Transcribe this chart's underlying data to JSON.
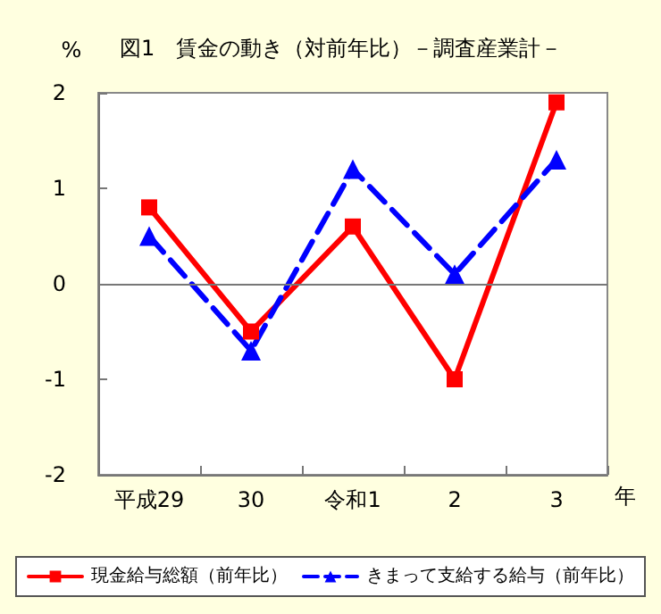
{
  "chart_data": {
    "type": "line",
    "title": "図1　賃金の動き（対前年比）－調査産業計－",
    "ylabel": "%",
    "xlabel": "年",
    "categories": [
      "平成29",
      "30",
      "令和1",
      "2",
      "3"
    ],
    "series": [
      {
        "name": "現金給与総額（前年比）",
        "color": "#ff0000",
        "values": [
          0.8,
          -0.5,
          0.6,
          -1.0,
          1.9
        ],
        "marker": "square",
        "line_style": "solid"
      },
      {
        "name": "きまって支給する給与（前年比）",
        "color": "#0000ff",
        "values": [
          0.5,
          -0.7,
          1.2,
          0.1,
          1.3
        ],
        "marker": "triangle",
        "line_style": "dashed"
      }
    ],
    "ref_lines": [
      {
        "axis": "y",
        "value": 0,
        "color": "#777777"
      }
    ],
    "ylim": [
      -2,
      2
    ],
    "yticks": [
      -2,
      -1,
      0,
      1,
      2
    ],
    "grid": false,
    "legend": "bottom"
  }
}
